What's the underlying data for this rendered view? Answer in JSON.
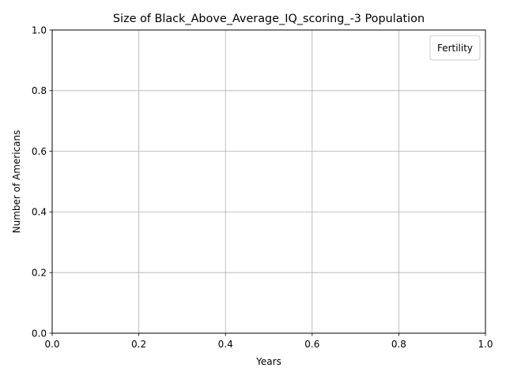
{
  "chart_data": {
    "type": "line",
    "title": "Size of Black_Above_Average_IQ_scoring_-3 Population",
    "xlabel": "Years",
    "ylabel": "Number of Americans",
    "xlim": [
      0.0,
      1.0
    ],
    "ylim": [
      0.0,
      1.0
    ],
    "x_ticks": [
      "0.0",
      "0.2",
      "0.4",
      "0.6",
      "0.8",
      "1.0"
    ],
    "y_ticks": [
      "0.0",
      "0.2",
      "0.4",
      "0.6",
      "0.8",
      "1.0"
    ],
    "grid": true,
    "legend": {
      "title": "Fertility",
      "placement": "top-right",
      "entries": []
    },
    "series": [],
    "colors": {
      "axis": "#000000",
      "grid": "#b0b0b0",
      "legend_border": "#cccccc",
      "background": "#ffffff"
    }
  }
}
